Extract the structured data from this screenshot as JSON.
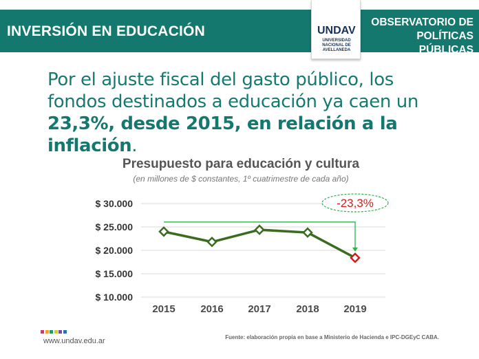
{
  "header": {
    "title": "INVERSIÓN EN EDUCACIÓN",
    "right_line1": "OBSERVATORIO DE",
    "right_line2": "POLÍTICAS PÚBLICAS",
    "logo_text": "UNDAV",
    "logo_sub1": "UNIVERSIDAD",
    "logo_sub2": "NACIONAL DE",
    "logo_sub3": "AVELLANEDA",
    "band_color": "#14786f",
    "logo_color": "#16325c"
  },
  "headline": {
    "line1": "Por el ajuste fiscal del gasto público, los",
    "line2": "fondos destinados a educación ya caen un",
    "line3_em": "23,3%, desde 2015, en relación a la inflación",
    "line3_end": "."
  },
  "chart_data": {
    "type": "line",
    "title": "Presupuesto para educación y cultura",
    "subtitle": "(en millones de $ constantes, 1º cuatrimestre de cada año)",
    "categories": [
      "2015",
      "2016",
      "2017",
      "2018",
      "2019"
    ],
    "series": [
      {
        "values": [
          24000,
          21800,
          24400,
          23800,
          18400
        ]
      }
    ],
    "ylim": [
      10000,
      30000
    ],
    "yticks": [
      30000,
      25000,
      20000,
      15000,
      10000
    ],
    "ytick_labels": [
      "$ 30.000",
      "$ 25.000",
      "$ 20.000",
      "$ 15.000",
      "$ 10.000"
    ],
    "grid": true,
    "annotation": {
      "text": "-23,3%",
      "from_category": "2015",
      "to_category": "2019"
    },
    "colors": {
      "line": "#3a6b1e",
      "marker_last": "#cc1f1f",
      "arrow": "#28b34b",
      "annotation_text": "#cc1f1f"
    }
  },
  "footer": {
    "url": "www.undav.edu.ar",
    "source": "Fuente: elaboración propia en base a Ministerio de Hacienda e IPC-DGEyC CABA.",
    "dot_colors": [
      "#d6336c",
      "#e8a33d",
      "#1e9a6d",
      "#d9ca2e",
      "#7b4aa0",
      "#2a6fb8"
    ]
  }
}
